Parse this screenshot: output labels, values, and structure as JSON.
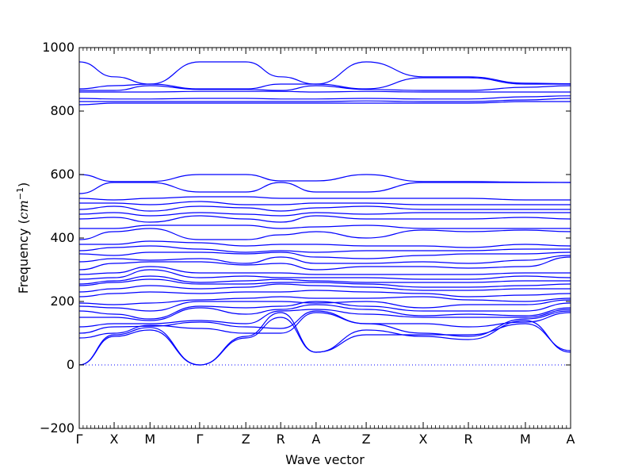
{
  "chart_data": {
    "type": "line",
    "xlabel": "Wave vector",
    "ylabel_text": "Frequency (",
    "ylabel_unit": "cm",
    "ylabel_exp": "−1",
    "ylabel_close": ")",
    "ylim": [
      -200,
      1000
    ],
    "yticks": [
      -200,
      0,
      200,
      400,
      600,
      800,
      1000
    ],
    "ytick_labels": [
      "−200",
      "0",
      "200",
      "400",
      "600",
      "800",
      "1000"
    ],
    "xlim": [
      0,
      100
    ],
    "high_symmetry_points": [
      {
        "label": "Γ",
        "x": 0
      },
      {
        "label": "X",
        "x": 7.1
      },
      {
        "label": "M",
        "x": 14.4
      },
      {
        "label": "Γ",
        "x": 24.5
      },
      {
        "label": "Z",
        "x": 33.9
      },
      {
        "label": "R",
        "x": 41.0
      },
      {
        "label": "A",
        "x": 48.2
      },
      {
        "label": "Z",
        "x": 58.4
      },
      {
        "label": "X",
        "x": 70.0
      },
      {
        "label": "R",
        "x": 79.2
      },
      {
        "label": "M",
        "x": 90.8
      },
      {
        "label": "A",
        "x": 100
      }
    ],
    "zero_line": 0,
    "line_color": "#0000ff",
    "series": [
      {
        "values": [
          0,
          95,
          118,
          0,
          90,
          165,
          40,
          110,
          90,
          80,
          140,
          40
        ]
      },
      {
        "values": [
          0,
          90,
          110,
          0,
          85,
          150,
          40,
          95,
          95,
          95,
          130,
          45
        ]
      },
      {
        "values": [
          85,
          100,
          125,
          115,
          100,
          100,
          165,
          130,
          100,
          90,
          145,
          170
        ]
      },
      {
        "values": [
          100,
          120,
          122,
          135,
          120,
          115,
          170,
          130,
          130,
          120,
          135,
          165
        ]
      },
      {
        "values": [
          120,
          130,
          130,
          140,
          130,
          170,
          175,
          160,
          150,
          150,
          150,
          175
        ]
      },
      {
        "values": [
          150,
          150,
          140,
          180,
          160,
          175,
          190,
          175,
          155,
          160,
          155,
          180
        ]
      },
      {
        "values": [
          170,
          160,
          145,
          185,
          180,
          185,
          200,
          185,
          170,
          170,
          170,
          195
        ]
      },
      {
        "values": [
          185,
          180,
          170,
          200,
          200,
          200,
          195,
          200,
          180,
          190,
          190,
          205
        ]
      },
      {
        "values": [
          195,
          190,
          195,
          205,
          210,
          215,
          210,
          210,
          215,
          205,
          200,
          210
        ]
      },
      {
        "values": [
          215,
          225,
          230,
          225,
          230,
          230,
          235,
          230,
          225,
          215,
          220,
          225
        ]
      },
      {
        "values": [
          230,
          240,
          250,
          240,
          245,
          255,
          250,
          245,
          235,
          235,
          240,
          240
        ]
      },
      {
        "values": [
          250,
          260,
          270,
          255,
          255,
          260,
          260,
          255,
          245,
          245,
          250,
          255
        ]
      },
      {
        "values": [
          255,
          265,
          280,
          260,
          265,
          270,
          265,
          260,
          260,
          260,
          265,
          265
        ]
      },
      {
        "values": [
          270,
          275,
          300,
          275,
          280,
          275,
          275,
          275,
          270,
          270,
          280,
          275
        ]
      },
      {
        "values": [
          285,
          290,
          310,
          290,
          290,
          290,
          285,
          285,
          285,
          285,
          290,
          290
        ]
      },
      {
        "values": [
          300,
          320,
          325,
          325,
          315,
          320,
          300,
          310,
          310,
          305,
          310,
          340
        ]
      },
      {
        "values": [
          325,
          335,
          330,
          335,
          320,
          340,
          320,
          320,
          325,
          320,
          330,
          345
        ]
      },
      {
        "values": [
          350,
          345,
          355,
          355,
          350,
          355,
          340,
          335,
          345,
          350,
          350,
          355
        ]
      },
      {
        "values": [
          360,
          370,
          375,
          365,
          355,
          360,
          355,
          360,
          360,
          360,
          365,
          365
        ]
      },
      {
        "values": [
          380,
          380,
          390,
          385,
          375,
          380,
          380,
          375,
          375,
          370,
          380,
          375
        ]
      },
      {
        "values": [
          395,
          420,
          430,
          395,
          395,
          410,
          420,
          400,
          425,
          420,
          425,
          420
        ]
      },
      {
        "values": [
          430,
          430,
          440,
          440,
          440,
          430,
          435,
          440,
          430,
          430,
          430,
          430
        ]
      },
      {
        "values": [
          460,
          465,
          450,
          470,
          460,
          450,
          470,
          460,
          460,
          460,
          465,
          460
        ]
      },
      {
        "values": [
          475,
          480,
          470,
          480,
          475,
          470,
          480,
          475,
          480,
          480,
          480,
          480
        ]
      },
      {
        "values": [
          490,
          500,
          485,
          500,
          495,
          485,
          495,
          500,
          490,
          490,
          490,
          490
        ]
      },
      {
        "values": [
          510,
          510,
          505,
          515,
          505,
          505,
          510,
          510,
          505,
          505,
          505,
          505
        ]
      },
      {
        "values": [
          525,
          520,
          525,
          530,
          530,
          525,
          525,
          525,
          525,
          525,
          520,
          520
        ]
      },
      {
        "values": [
          540,
          575,
          575,
          545,
          545,
          575,
          545,
          545,
          575,
          575,
          575,
          575
        ]
      },
      {
        "values": [
          600,
          578,
          578,
          600,
          600,
          580,
          580,
          600,
          578,
          578,
          576,
          575
        ]
      },
      {
        "values": [
          820,
          825,
          825,
          825,
          825,
          825,
          825,
          825,
          825,
          825,
          830,
          830
        ]
      },
      {
        "values": [
          830,
          830,
          830,
          830,
          830,
          830,
          830,
          832,
          830,
          830,
          835,
          840
        ]
      },
      {
        "values": [
          840,
          838,
          838,
          840,
          840,
          838,
          838,
          840,
          838,
          838,
          845,
          848
        ]
      },
      {
        "values": [
          860,
          860,
          860,
          862,
          862,
          862,
          860,
          862,
          860,
          860,
          860,
          860
        ]
      },
      {
        "values": [
          865,
          865,
          880,
          868,
          868,
          865,
          880,
          868,
          865,
          865,
          875,
          880
        ]
      },
      {
        "values": [
          870,
          880,
          885,
          870,
          870,
          885,
          885,
          870,
          905,
          905,
          885,
          885
        ]
      },
      {
        "values": [
          955,
          908,
          885,
          955,
          955,
          908,
          885,
          955,
          908,
          908,
          888,
          886
        ]
      }
    ]
  }
}
